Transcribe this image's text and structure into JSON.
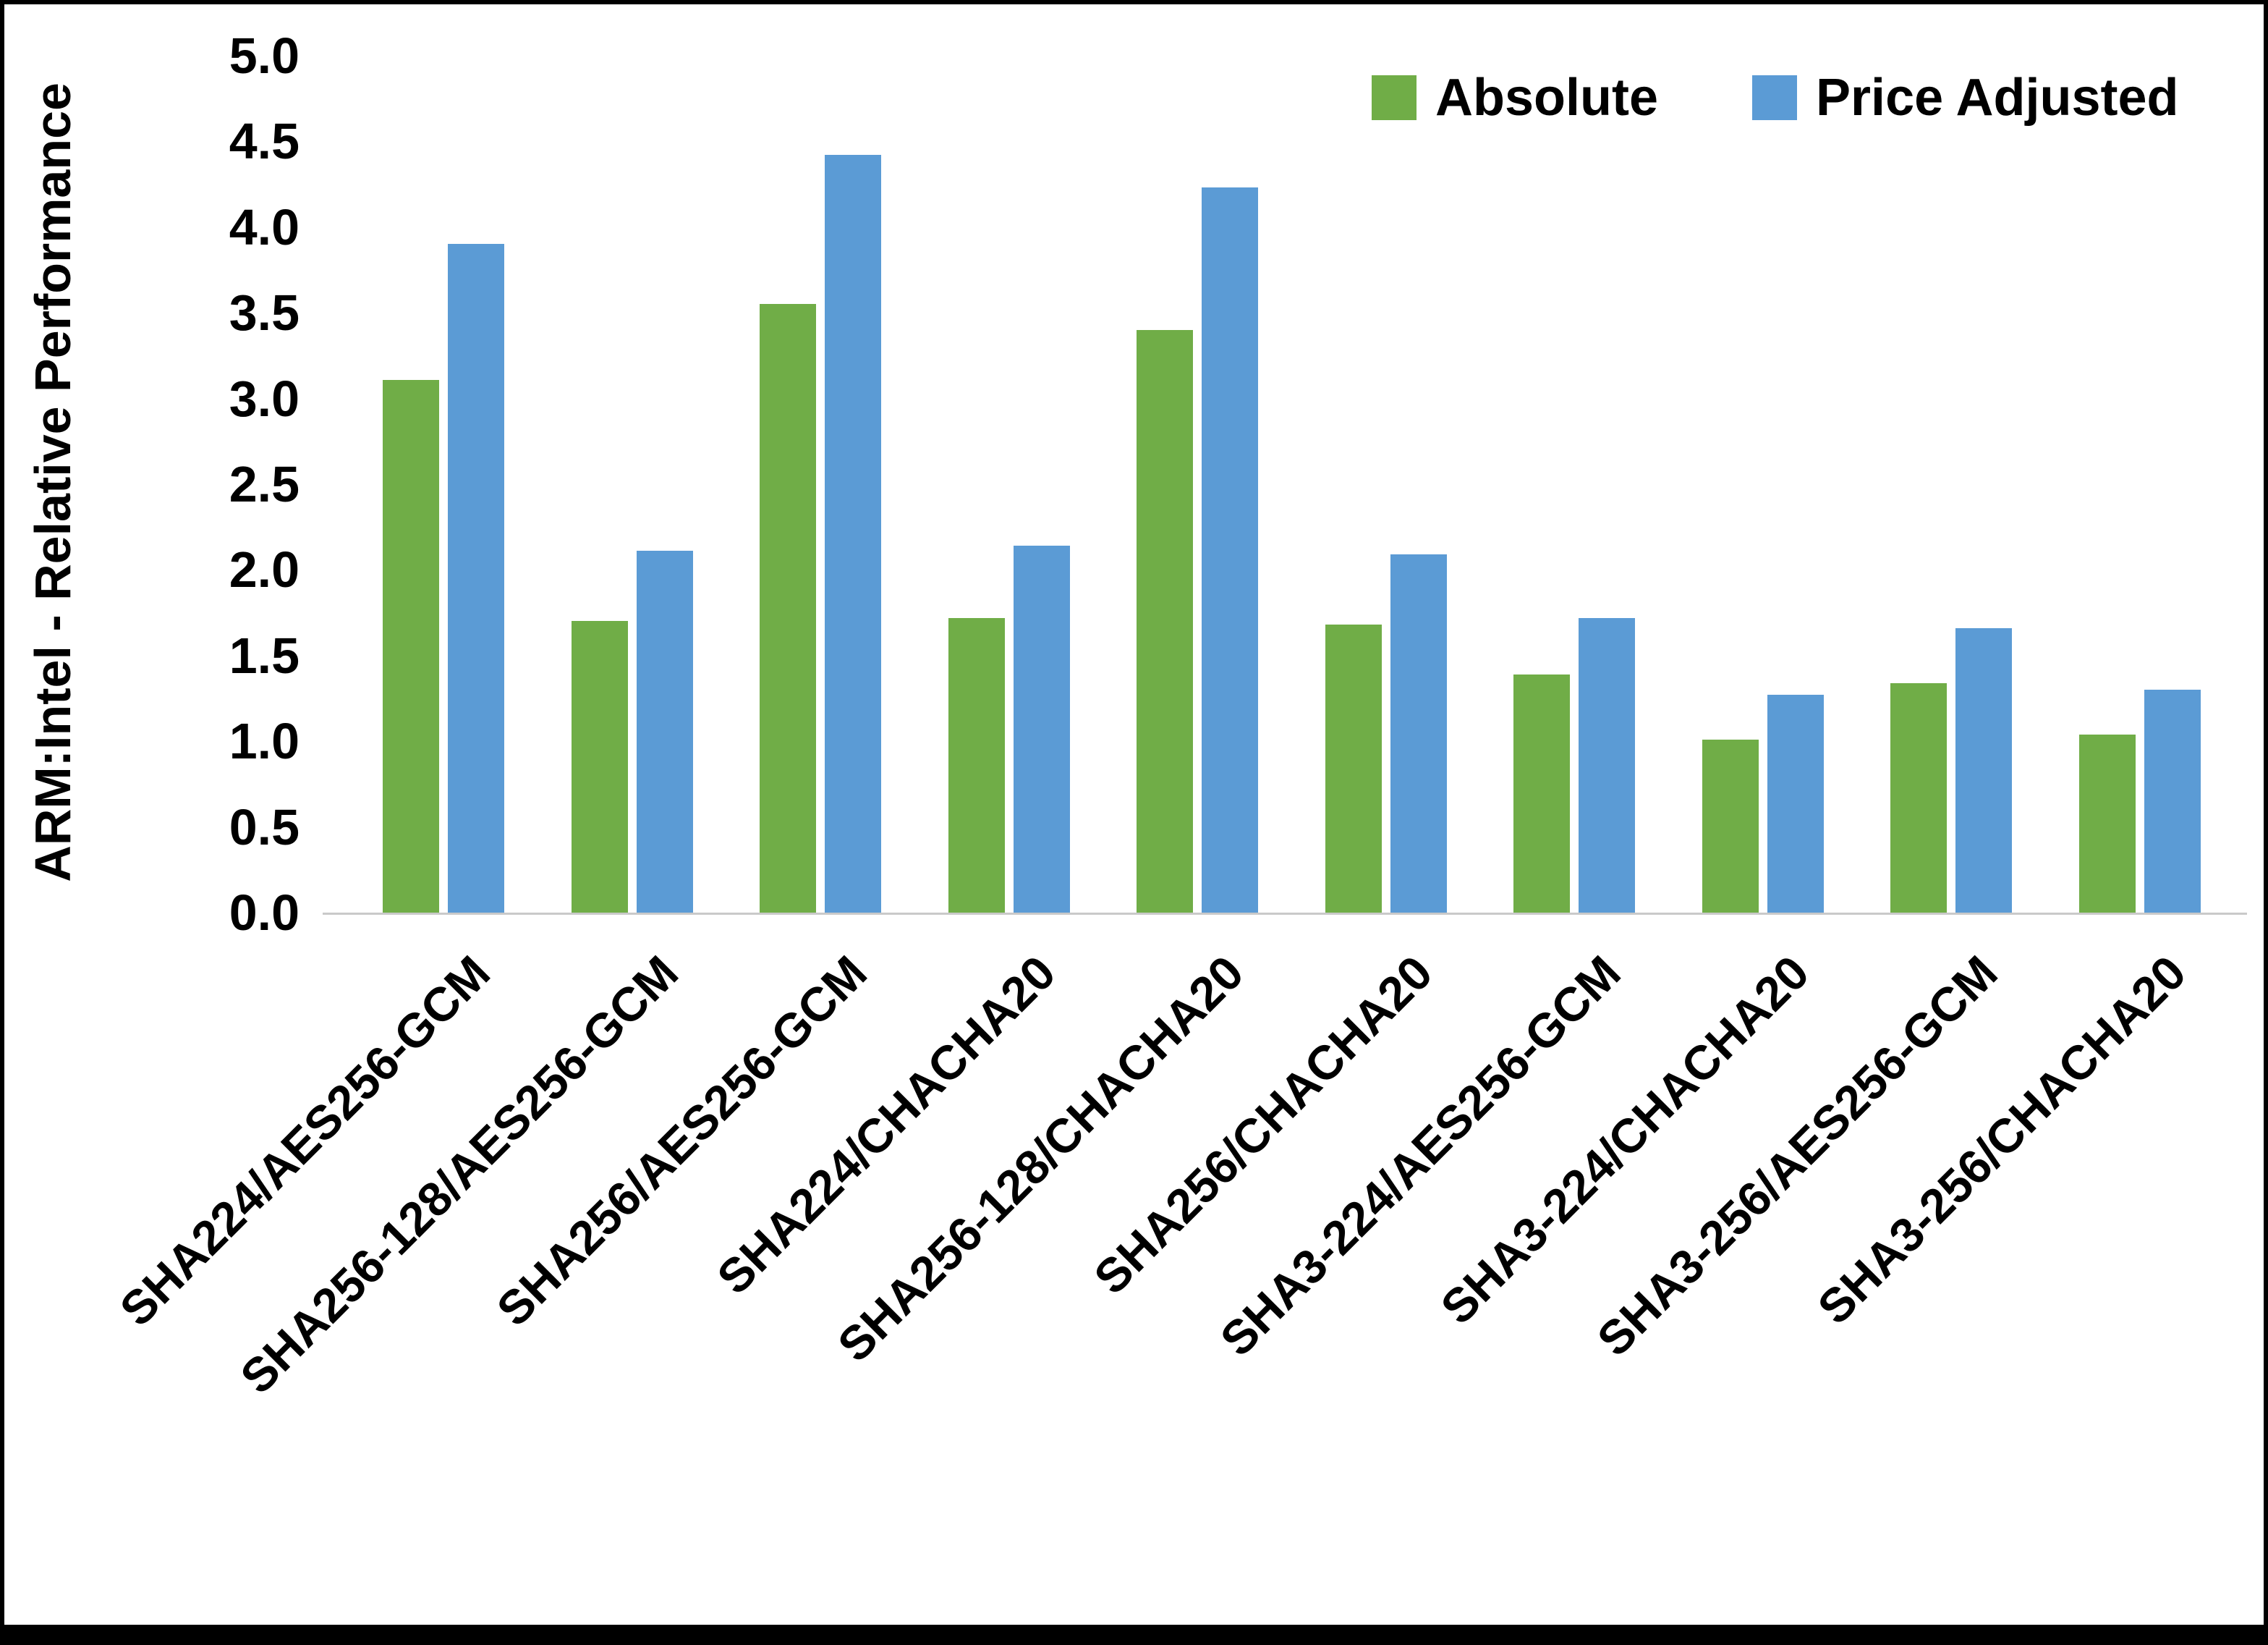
{
  "chart_data": {
    "type": "bar",
    "title": "",
    "xlabel": "",
    "ylabel": "ARM:Intel - Relative Performance",
    "ylim": [
      0,
      5
    ],
    "ytick_step": 0.5,
    "grid": false,
    "legend_position": "top-right",
    "categories": [
      "SHA224/AES256-GCM",
      "SHA256-128/AES256-GCM",
      "SHA256/AES256-GCM",
      "SHA224/CHACHA20",
      "SHA256-128/CHACHA20",
      "SHA256/CHACHA20",
      "SHA3-224/AES256-GCM",
      "SHA3-224/CHACHA20",
      "SHA3-256/AES256-GCM",
      "SHA3-256/CHACHA20"
    ],
    "series": [
      {
        "name": "Absolute",
        "color": "#70AD47",
        "values": [
          3.11,
          1.7,
          3.55,
          1.72,
          3.4,
          1.68,
          1.39,
          1.01,
          1.34,
          1.04
        ]
      },
      {
        "name": "Price Adjusted",
        "color": "#5B9BD5",
        "values": [
          3.9,
          2.11,
          4.42,
          2.14,
          4.23,
          2.09,
          1.72,
          1.27,
          1.66,
          1.3
        ]
      }
    ]
  },
  "colors": {
    "axis_line": "#c9c9c9",
    "frame": "#000000",
    "text": "#000000"
  }
}
